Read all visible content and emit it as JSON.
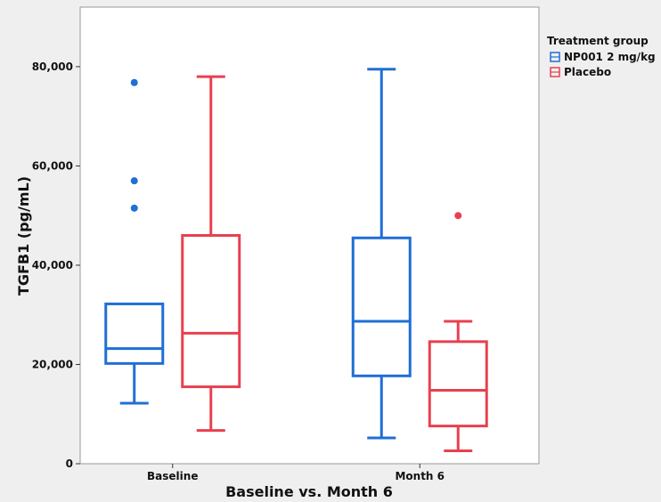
{
  "chart_data": {
    "type": "boxplot",
    "title": "",
    "xlabel": "Baseline vs. Month 6",
    "ylabel": "TGFB1 (pg/mL)",
    "ylim": [
      0,
      92000
    ],
    "yticks": [
      0,
      20000,
      40000,
      60000,
      80000
    ],
    "ytick_labels": [
      "0",
      "20,000",
      "40,000",
      "60,000",
      "80,000"
    ],
    "categories": [
      "Baseline",
      "Month 6"
    ],
    "grid": false,
    "legend": {
      "title": "Treatment group",
      "placement": "right-top"
    },
    "series": [
      {
        "name": "NP001 2 mg/kg",
        "color": "#1f6fd6",
        "boxes": [
          {
            "category": "Baseline",
            "whisker_low": 12200,
            "q1": 20200,
            "median": 23200,
            "q3": 32200,
            "whisker_high": 32200,
            "outliers": [
              51500,
              57000,
              76800
            ]
          },
          {
            "category": "Month 6",
            "whisker_low": 5200,
            "q1": 17700,
            "median": 28700,
            "q3": 45500,
            "whisker_high": 79500,
            "outliers": []
          }
        ]
      },
      {
        "name": "Placebo",
        "color": "#e8404f",
        "boxes": [
          {
            "category": "Baseline",
            "whisker_low": 6700,
            "q1": 15500,
            "median": 26300,
            "q3": 46000,
            "whisker_high": 78000,
            "outliers": []
          },
          {
            "category": "Month 6",
            "whisker_low": 2600,
            "q1": 7600,
            "median": 14800,
            "q3": 24600,
            "whisker_high": 28700,
            "outliers": [
              50000
            ]
          }
        ]
      }
    ]
  }
}
